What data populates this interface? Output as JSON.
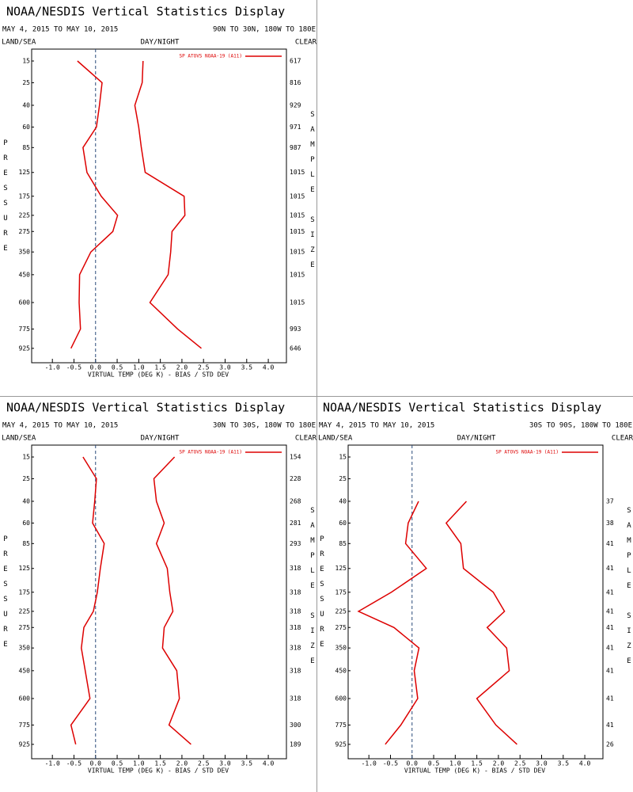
{
  "chart_data": [
    {
      "type": "line",
      "title": "NOAA/NESDIS Vertical Statistics Display",
      "date_range": "MAY 4, 2015 TO MAY 10, 2015",
      "region": "90N TO 30N, 180W TO 180E",
      "left_header": "LAND/SEA",
      "center_header": "DAY/NIGHT",
      "right_header": "CLEAR",
      "x_label": "VIRTUAL TEMP (DEG K) - BIAS / STD DEV",
      "y_label": "PRESSURE",
      "y2_label": "SAMPLE SIZE",
      "y": [
        15,
        25,
        40,
        60,
        85,
        125,
        175,
        225,
        275,
        350,
        450,
        600,
        775,
        925
      ],
      "series": [
        {
          "name": "SP ATOVS NOAA-19 (A11)",
          "color": "#dd0000",
          "bias": [
            -0.42,
            0.15,
            0.09,
            0.02,
            -0.29,
            -0.2,
            0.13,
            0.51,
            0.4,
            -0.11,
            -0.37,
            -0.38,
            -0.35,
            -0.57
          ],
          "std_dev": [
            1.1,
            1.08,
            0.91,
            1.0,
            1.06,
            1.15,
            2.05,
            2.07,
            1.77,
            1.74,
            1.68,
            1.26,
            1.9,
            2.45
          ]
        }
      ],
      "sample_size": [
        617,
        816,
        929,
        971,
        987,
        1015,
        1015,
        1015,
        1015,
        1015,
        1015,
        1015,
        993,
        646
      ],
      "xlim": [
        -1.48,
        4.42
      ],
      "xticks": [
        {
          "value": -1,
          "label": "-1.0"
        },
        {
          "value": -0.5,
          "label": "-0.5"
        },
        {
          "value": 0,
          "label": "0.0"
        },
        {
          "value": 0.5,
          "label": "0.5"
        },
        {
          "value": 1,
          "label": "1.0"
        },
        {
          "value": 1.5,
          "label": "1.5"
        },
        {
          "value": 2,
          "label": "2.0"
        },
        {
          "value": 2.5,
          "label": "2.5"
        },
        {
          "value": 3,
          "label": "3.0"
        },
        {
          "value": 3.5,
          "label": "3.5"
        },
        {
          "value": 4,
          "label": "4.0"
        }
      ],
      "ylim": [
        11,
        1050
      ],
      "yticks": [
        15,
        25,
        40,
        60,
        85,
        125,
        175,
        225,
        275,
        350,
        450,
        600,
        775,
        925
      ]
    },
    {
      "type": "line",
      "title": "NOAA/NESDIS Vertical Statistics Display",
      "date_range": "MAY 4, 2015 TO MAY 10, 2015",
      "region": "30N TO 30S, 180W TO 180E",
      "left_header": "LAND/SEA",
      "center_header": "DAY/NIGHT",
      "right_header": "CLEAR",
      "x_label": "VIRTUAL TEMP (DEG K) - BIAS / STD DEV",
      "y_label": "PRESSURE",
      "y2_label": "SAMPLE SIZE",
      "y": [
        15,
        25,
        40,
        60,
        85,
        125,
        175,
        225,
        275,
        350,
        450,
        600,
        775,
        925
      ],
      "series": [
        {
          "name": "SP ATOVS NOAA-19 (A11)",
          "color": "#dd0000",
          "bias": [
            -0.29,
            0.02,
            -0.02,
            -0.07,
            0.2,
            0.11,
            0.04,
            -0.05,
            -0.27,
            -0.33,
            -0.24,
            -0.13,
            -0.57,
            -0.46
          ],
          "std_dev": [
            1.83,
            1.35,
            1.41,
            1.59,
            1.41,
            1.66,
            1.72,
            1.79,
            1.59,
            1.55,
            1.88,
            1.94,
            1.7,
            2.21
          ]
        }
      ],
      "sample_size": [
        154,
        228,
        268,
        281,
        293,
        318,
        318,
        318,
        318,
        318,
        318,
        318,
        300,
        189
      ],
      "xlim": [
        -1.48,
        4.42
      ],
      "xticks": [
        {
          "value": -1,
          "label": "-1.0"
        },
        {
          "value": -0.5,
          "label": "-0.5"
        },
        {
          "value": 0,
          "label": "0.0"
        },
        {
          "value": 0.5,
          "label": "0.5"
        },
        {
          "value": 1,
          "label": "1.0"
        },
        {
          "value": 1.5,
          "label": "1.5"
        },
        {
          "value": 2,
          "label": "2.0"
        },
        {
          "value": 2.5,
          "label": "2.5"
        },
        {
          "value": 3,
          "label": "3.0"
        },
        {
          "value": 3.5,
          "label": "3.5"
        },
        {
          "value": 4,
          "label": "4.0"
        }
      ],
      "ylim": [
        11,
        1050
      ],
      "yticks": [
        15,
        25,
        40,
        60,
        85,
        125,
        175,
        225,
        275,
        350,
        450,
        600,
        775,
        925
      ]
    },
    {
      "type": "line",
      "title": "NOAA/NESDIS Vertical Statistics Display",
      "date_range": "MAY 4, 2015 TO MAY 10, 2015",
      "region": "30S TO 90S, 180W TO 180E",
      "left_header": "LAND/SEA",
      "center_header": "DAY/NIGHT",
      "right_header": "CLEAR",
      "x_label": "VIRTUAL TEMP (DEG K) - BIAS / STD DEV",
      "y_label": "PRESSURE",
      "y2_label": "SAMPLE SIZE",
      "y": [
        15,
        25,
        40,
        60,
        85,
        125,
        175,
        225,
        275,
        350,
        450,
        600,
        775,
        925
      ],
      "series": [
        {
          "name": "SP ATOVS NOAA-19 (A11)",
          "color": "#dd0000",
          "bias": [
            null,
            null,
            0.15,
            -0.09,
            -0.15,
            0.33,
            -0.48,
            -1.24,
            -0.42,
            0.16,
            0.05,
            0.13,
            -0.26,
            -0.62
          ],
          "std_dev": [
            null,
            null,
            1.26,
            0.79,
            1.13,
            1.19,
            1.88,
            2.14,
            1.74,
            2.19,
            2.25,
            1.5,
            1.94,
            2.43
          ]
        }
      ],
      "sample_size": [
        null,
        null,
        37,
        38,
        41,
        41,
        41,
        41,
        41,
        41,
        41,
        41,
        41,
        26
      ],
      "xlim": [
        -1.48,
        4.42
      ],
      "xticks": [
        {
          "value": -1,
          "label": "-1.0"
        },
        {
          "value": -0.5,
          "label": "-0.5"
        },
        {
          "value": 0,
          "label": "0.0"
        },
        {
          "value": 0.5,
          "label": "0.5"
        },
        {
          "value": 1,
          "label": "1.0"
        },
        {
          "value": 1.5,
          "label": "1.5"
        },
        {
          "value": 2,
          "label": "2.0"
        },
        {
          "value": 2.5,
          "label": "2.5"
        },
        {
          "value": 3,
          "label": "3.0"
        },
        {
          "value": 3.5,
          "label": "3.5"
        },
        {
          "value": 4,
          "label": "4.0"
        }
      ],
      "ylim": [
        11,
        1050
      ],
      "yticks": [
        15,
        25,
        40,
        60,
        85,
        125,
        175,
        225,
        275,
        350,
        450,
        600,
        775,
        925
      ]
    }
  ]
}
